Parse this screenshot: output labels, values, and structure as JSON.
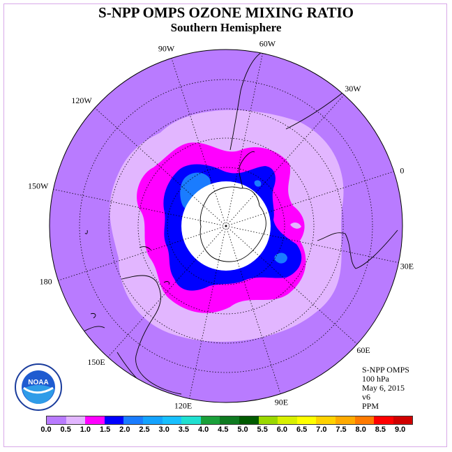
{
  "header": {
    "title": "S-NPP OMPS OZONE MIXING RATIO",
    "subtitle": "Southern Hemisphere"
  },
  "map": {
    "longitude_labels": [
      "90W",
      "60W",
      "30W",
      "0",
      "30E",
      "60E",
      "90E",
      "120E",
      "150E",
      "180",
      "150W",
      "120W"
    ],
    "contour_colors": {
      "bg_0_0_5": "#b97bff",
      "0_5_1_0": "#e2b6ff",
      "1_0_1_5": "#ff00ff",
      "1_5_2_0": "#0000ff",
      "2_0_2_5": "#1a7cff",
      "2_5_3_0": "#14a3ff",
      "pole_mask": "#ffffff"
    }
  },
  "info": {
    "line1": "S-NPP OMPS",
    "line2": "100 hPa",
    "line3": "May 6, 2015",
    "line4": "v6",
    "line5": "PPM"
  },
  "colorbar": {
    "colors": [
      "#b97bff",
      "#e2b6ff",
      "#ff00ff",
      "#0000ff",
      "#1a7cff",
      "#14a3ff",
      "#18c0ff",
      "#20e0d0",
      "#1aa03a",
      "#0e7a20",
      "#005a00",
      "#9ad800",
      "#d8f000",
      "#ffff00",
      "#ffd200",
      "#ffaa00",
      "#ff7a00",
      "#ff0000",
      "#d00000",
      "#8b5a3a"
    ],
    "ticks": [
      "0.0",
      "0.5",
      "1.0",
      "1.5",
      "2.0",
      "2.5",
      "3.0",
      "3.5",
      "4.0",
      "4.5",
      "5.0",
      "5.5",
      "6.0",
      "6.5",
      "7.0",
      "7.5",
      "8.0",
      "8.5",
      "9.0"
    ]
  },
  "logo": {
    "text": "NOAA",
    "ring_text": "NATIONAL OCEANIC AND ATMOSPHERIC ADMINISTRATION",
    "bottom_text": "U.S. DEPARTMENT OF COMMERCE"
  }
}
